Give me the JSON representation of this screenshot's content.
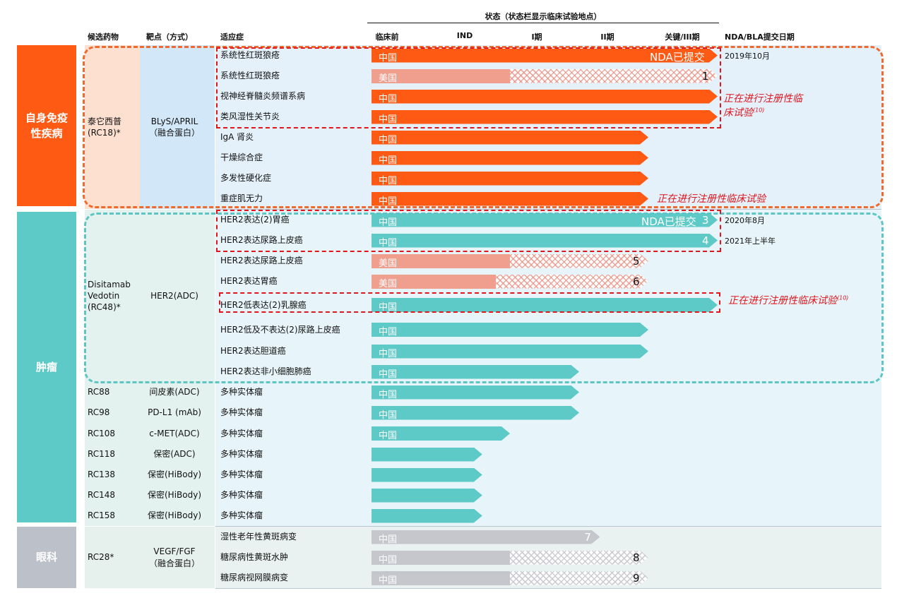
{
  "header": {
    "status_title": "状态（状态栏显示临床试验地点）",
    "col_candidate": "候选药物",
    "col_target": "靶点（方式）",
    "col_indication": "适应症",
    "col_nda": "NDA/BLA提交日期"
  },
  "categories": [
    {
      "label_line1": "自身免疫",
      "label_line2": "性疾病",
      "color": "#ff5a14"
    },
    {
      "label_line1": "肿瘤",
      "label_line2": "",
      "color": "#5ecac7"
    },
    {
      "label_line1": "眼科",
      "label_line2": "",
      "color": "#bcc0c8"
    }
  ],
  "notes": {
    "registrational_long": "正在进行注册性临床试验",
    "registrational_split_line1": "正在进行注册性临",
    "registrational_split_line2": "床试验",
    "footnote_ref": "(10)"
  },
  "colors": {
    "autoimmune_bar": "#ff5a14",
    "oncology_bar": "#5ecac7",
    "us_bar": "#f09e8e",
    "ophthalmology_bar": "#c6c7cc",
    "note_red": "#e0161d"
  },
  "chart_data": {
    "type": "pipeline",
    "stages": [
      "临床前",
      "IND",
      "I期",
      "II期",
      "关键/III期"
    ],
    "programs": [
      {
        "candidate": "泰它西普",
        "candidate_code": "(RC18)*",
        "target": "BLyS/APRIL",
        "modality": "（融合蛋白）",
        "category": "自身免疫性疾病",
        "indications": [
          {
            "name": "系统性红斑狼疮",
            "region": "中国",
            "stage": 5.0,
            "marker": "NDA已提交",
            "nda_date": "2019年10月"
          },
          {
            "name": "系统性红斑狼疮",
            "region": "美国",
            "stage": 2.0,
            "planned_stage": 5.0,
            "footnote": "1"
          },
          {
            "name": "视神经脊髓炎频谱系病",
            "region": "中国",
            "stage": 5.0
          },
          {
            "name": "类风湿性关节炎",
            "region": "中国",
            "stage": 5.0
          },
          {
            "name": "IgA 肾炎",
            "region": "中国",
            "stage": 4.0
          },
          {
            "name": "干燥综合症",
            "region": "中国",
            "stage": 4.0
          },
          {
            "name": "多发性硬化症",
            "region": "中国",
            "stage": 4.0
          },
          {
            "name": "重症肌无力",
            "region": "中国",
            "stage": 4.0
          }
        ]
      },
      {
        "candidate": "Disitamab Vedotin",
        "candidate_code": "(RC48)*",
        "target": "HER2(ADC)",
        "modality": "",
        "category": "肿瘤",
        "indications": [
          {
            "name": "HER2表达(2)胃癌",
            "region": "中国",
            "stage": 5.0,
            "marker": "NDA已提交",
            "footnote": "3",
            "nda_date": "2020年8月"
          },
          {
            "name": "HER2表达尿路上皮癌",
            "region": "中国",
            "stage": 5.0,
            "footnote": "4",
            "nda_date": "2021年上半年"
          },
          {
            "name": "HER2表达尿路上皮癌",
            "region": "美国",
            "stage": 2.0,
            "planned_stage": 4.0,
            "footnote": "5"
          },
          {
            "name": "HER2表达胃癌",
            "region": "美国",
            "stage": 1.8,
            "planned_stage": 4.0,
            "footnote": "6"
          },
          {
            "name": "HER2低表达(2)乳腺癌",
            "region": "中国",
            "stage": 5.0
          },
          {
            "name": "HER2低及不表达(2)尿路上皮癌",
            "region": "中国",
            "stage": 4.0
          },
          {
            "name": "HER2表达胆道癌",
            "region": "中国",
            "stage": 4.0
          },
          {
            "name": "HER2表达非小细胞肺癌",
            "region": "中国",
            "stage": 3.0
          }
        ]
      },
      {
        "candidate": "RC88",
        "target": "间皮素(ADC)",
        "category": "肿瘤",
        "indications": [
          {
            "name": "多种实体瘤",
            "region": "中国",
            "stage": 3.0
          }
        ]
      },
      {
        "candidate": "RC98",
        "target": "PD-L1 (mAb)",
        "category": "肿瘤",
        "indications": [
          {
            "name": "多种实体瘤",
            "region": "中国",
            "stage": 3.0
          }
        ]
      },
      {
        "candidate": "RC108",
        "target": "c-MET(ADC)",
        "category": "肿瘤",
        "indications": [
          {
            "name": "多种实体瘤",
            "region": "中国",
            "stage": 2.0
          }
        ]
      },
      {
        "candidate": "RC118",
        "target": "保密(ADC)",
        "category": "肿瘤",
        "indications": [
          {
            "name": "多种实体瘤",
            "region": "",
            "stage": 1.6
          }
        ]
      },
      {
        "candidate": "RC138",
        "target": "保密(HiBody)",
        "category": "肿瘤",
        "indications": [
          {
            "name": "多种实体瘤",
            "region": "",
            "stage": 1.6
          }
        ]
      },
      {
        "candidate": "RC148",
        "target": "保密(HiBody)",
        "category": "肿瘤",
        "indications": [
          {
            "name": "多种实体瘤",
            "region": "",
            "stage": 1.6
          }
        ]
      },
      {
        "candidate": "RC158",
        "target": "保密(HiBody)",
        "category": "肿瘤",
        "indications": [
          {
            "name": "多种实体瘤",
            "region": "",
            "stage": 1.6
          }
        ]
      },
      {
        "candidate": "RC28*",
        "target": "VEGF/FGF",
        "modality": "（融合蛋白）",
        "category": "眼科",
        "indications": [
          {
            "name": "湿性老年性黄斑病变",
            "region": "中国",
            "stage": 3.3,
            "footnote": "7"
          },
          {
            "name": "糖尿病性黄斑水肿",
            "region": "中国",
            "stage": 2.0,
            "planned_stage": 4.0,
            "footnote": "8"
          },
          {
            "name": "糖尿病视网膜病变",
            "region": "中国",
            "stage": 2.0,
            "planned_stage": 4.0,
            "footnote": "9"
          }
        ]
      }
    ]
  }
}
